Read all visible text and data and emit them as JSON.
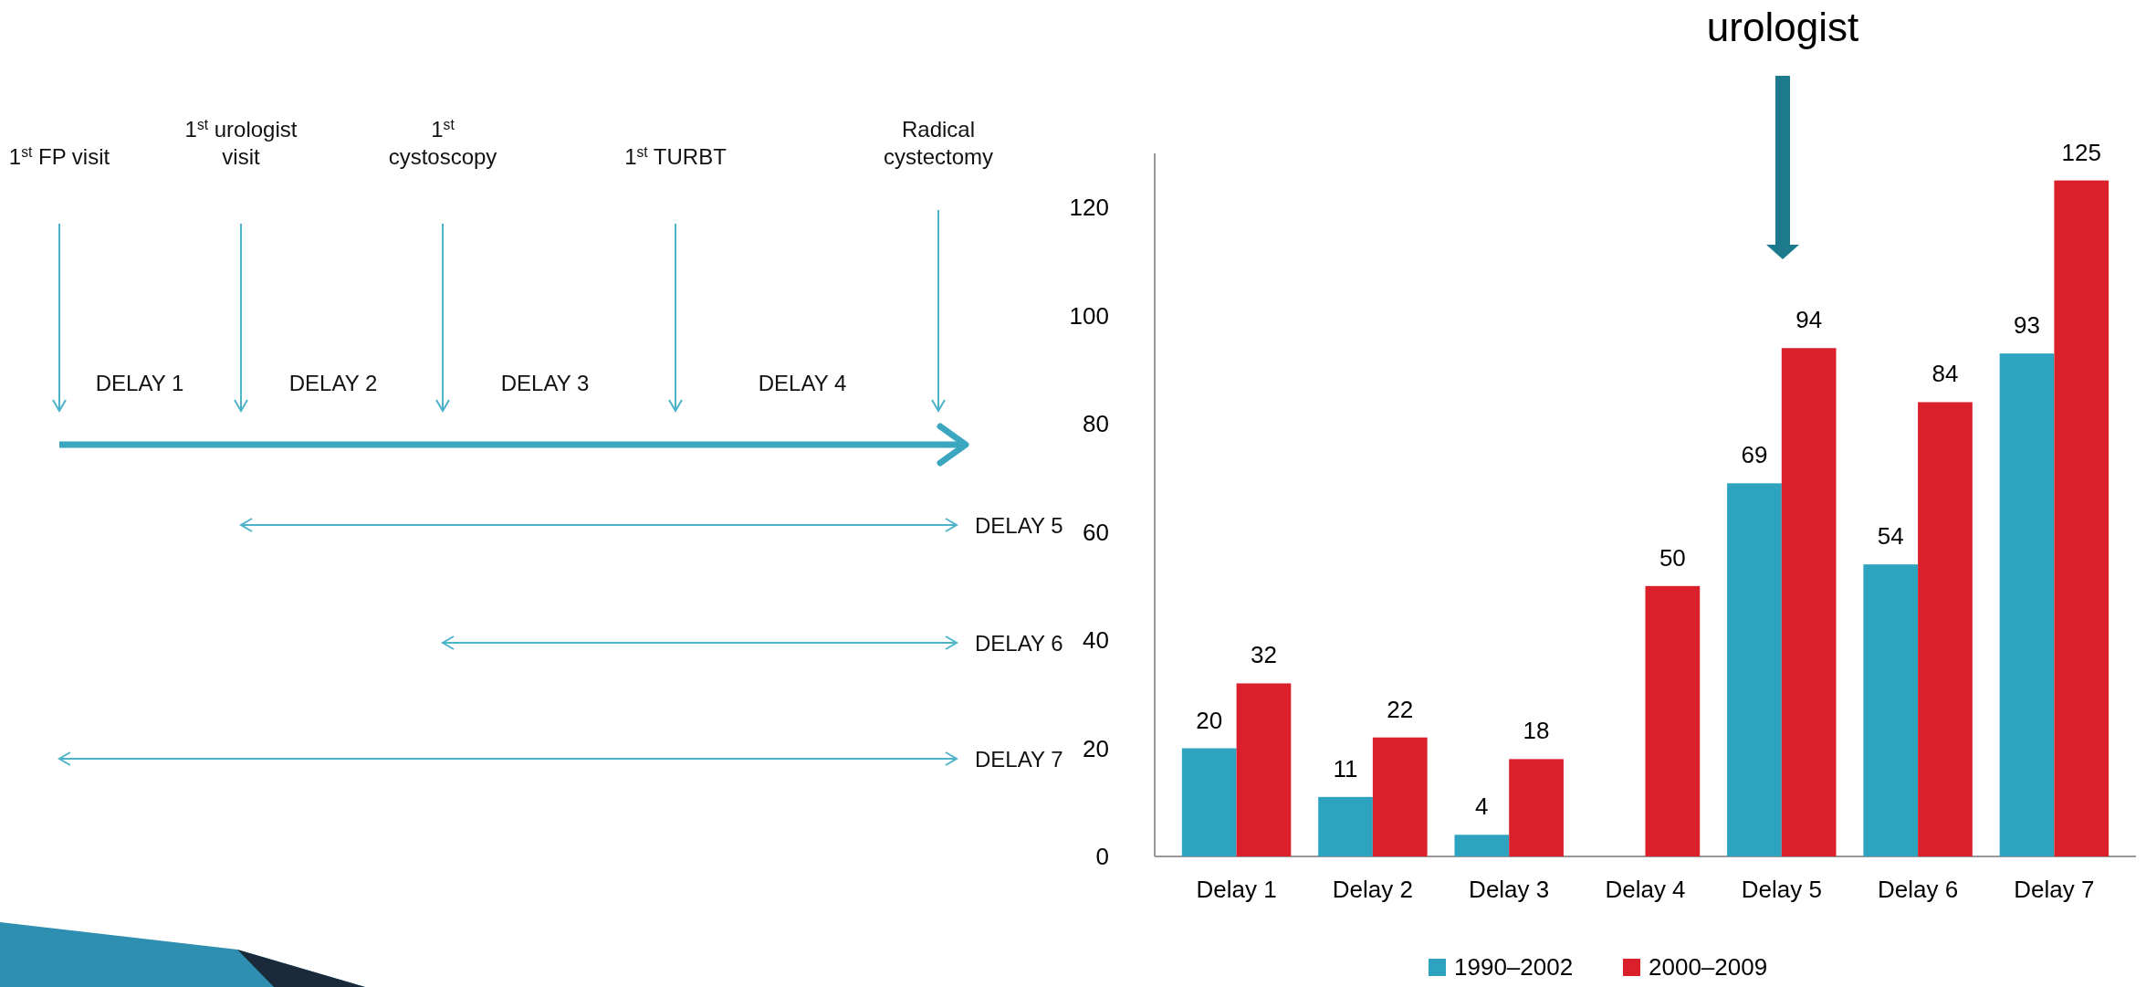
{
  "chart_data": [
    {
      "type": "other",
      "annotations": [
        "1$^{st}$ FP visit",
        "1$^{st}$ urologist\nvisit",
        "1$^{st}$\ncystoscopy",
        "1$^{st}$ TURBT",
        "Radical\ncystectomy",
        "DELAY 1",
        "DELAY 2",
        "DELAY 3",
        "DELAY 4",
        "DELAY 5",
        "DELAY 6",
        "DELAY 7"
      ]
    },
    {
      "type": "bar",
      "categories": [
        "Delay 1",
        "Delay 2",
        "Delay 3",
        "Delay 4",
        "Delay 5",
        "Delay 6",
        "Delay 7"
      ],
      "series": [
        {
          "name": "1990–2002",
          "color": "#2ea3bf",
          "values": [
            20,
            11,
            4,
            null,
            69,
            54,
            93
          ],
          "value_labels": [
            "20",
            "11",
            "4",
            null,
            "69",
            "54",
            "93"
          ]
        },
        {
          "name": "2000–2009",
          "color": "#d9202b",
          "values": [
            32,
            22,
            18,
            50,
            94,
            84,
            125
          ],
          "value_labels": [
            "32",
            "22",
            "18",
            "50",
            "94",
            "84",
            "125"
          ]
        }
      ],
      "ylim": [
        0,
        130
      ],
      "yticks": [
        0,
        20,
        40,
        60,
        80,
        100,
        120
      ],
      "legend": "bottom",
      "annotations": [
        "urologist"
      ]
    }
  ]
}
